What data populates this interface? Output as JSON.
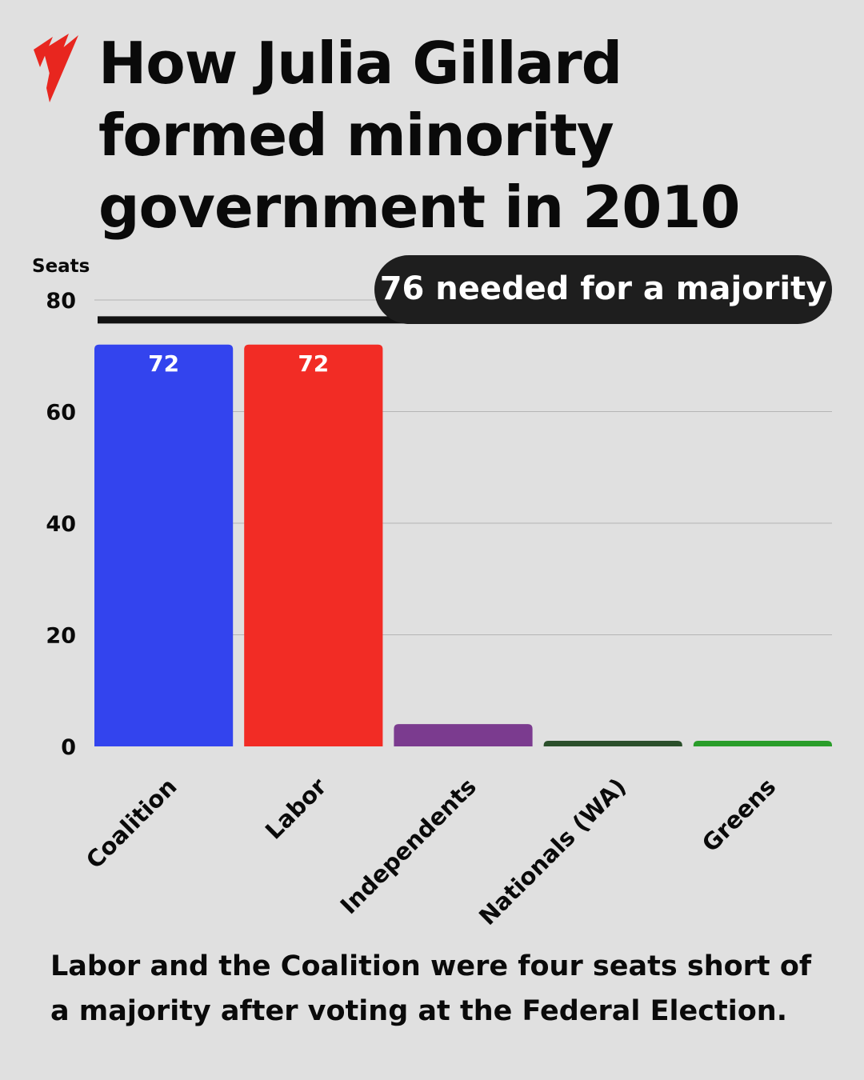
{
  "title": [
    "How Julia Gillard",
    "formed minority",
    "government in 2010"
  ],
  "logo": {
    "name": "sbs-logo-icon",
    "color": "#e8261f"
  },
  "caption": "Labor and the Coalition were four seats short of a majority after voting at the Federal Election.",
  "chart_data": {
    "type": "bar",
    "ylabel": "Seats",
    "ylim": [
      0,
      80
    ],
    "yticks": [
      0,
      20,
      40,
      60,
      80
    ],
    "grid": true,
    "categories": [
      "Coalition",
      "Labor",
      "Independents",
      "Nationals (WA)",
      "Greens"
    ],
    "values": [
      72,
      72,
      4,
      1,
      1
    ],
    "colors": [
      "#3344ee",
      "#f22c25",
      "#7b3b8f",
      "#2b4f2b",
      "#2a9d2a"
    ],
    "data_labels": [
      "72",
      "72",
      "",
      "",
      ""
    ],
    "reference_line": {
      "value": 76,
      "label": "76 needed for a majority",
      "color": "#111111"
    }
  }
}
